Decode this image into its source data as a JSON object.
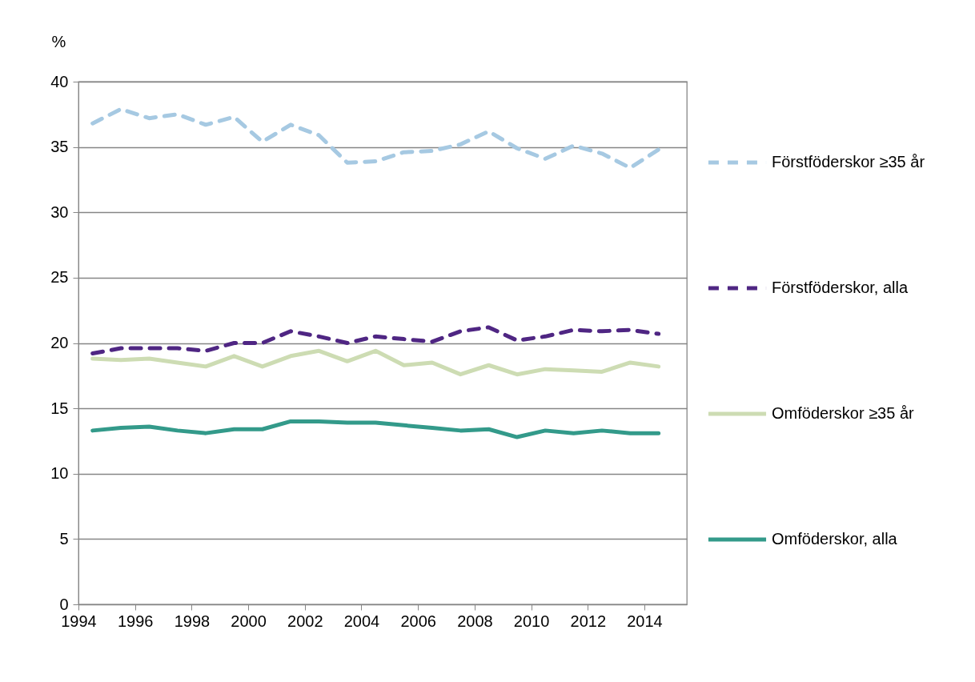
{
  "chart_data": {
    "type": "line",
    "ylabel": "%",
    "x": [
      1994.5,
      1995.5,
      1996.5,
      1997.5,
      1998.5,
      1999.5,
      2000.5,
      2001.5,
      2002.5,
      2003.5,
      2004.5,
      2005.5,
      2006.5,
      2007.5,
      2008.5,
      2009.5,
      2010.5,
      2011.5,
      2012.5,
      2013.5,
      2014.5
    ],
    "series": [
      {
        "name": "Förstföderskor  ≥35 år",
        "color": "#a6c9e2",
        "line_style": "dashed",
        "values": [
          36.8,
          37.9,
          37.2,
          37.5,
          36.7,
          37.3,
          35.4,
          36.7,
          35.9,
          33.8,
          33.9,
          34.6,
          34.7,
          35.2,
          36.2,
          34.9,
          34.1,
          35.1,
          34.5,
          33.4,
          34.8
        ]
      },
      {
        "name": "Förstföderskor, alla",
        "color": "#4f2683",
        "line_style": "dashed",
        "values": [
          19.2,
          19.6,
          19.6,
          19.6,
          19.4,
          20.0,
          20.0,
          20.9,
          20.5,
          20.0,
          20.5,
          20.3,
          20.1,
          20.9,
          21.2,
          20.2,
          20.5,
          21.0,
          20.9,
          21.0,
          20.7
        ]
      },
      {
        "name": "Omföderskor  ≥35 år",
        "color": "#cddcb3",
        "line_style": "solid",
        "values": [
          18.8,
          18.7,
          18.8,
          18.5,
          18.2,
          19.0,
          18.2,
          19.0,
          19.4,
          18.6,
          19.4,
          18.3,
          18.5,
          17.6,
          18.3,
          17.6,
          18.0,
          17.9,
          17.8,
          18.5,
          18.2
        ]
      },
      {
        "name": "Omföderskor, alla",
        "color": "#339a8a",
        "line_style": "solid",
        "values": [
          13.3,
          13.5,
          13.6,
          13.3,
          13.1,
          13.4,
          13.4,
          14.0,
          14.0,
          13.9,
          13.9,
          13.7,
          13.5,
          13.3,
          13.4,
          12.8,
          13.3,
          13.1,
          13.3,
          13.1,
          13.1
        ]
      }
    ],
    "xlim": [
      1994,
      2015.5
    ],
    "xticks": [
      1994,
      1996,
      1998,
      2000,
      2002,
      2004,
      2006,
      2008,
      2010,
      2012,
      2014
    ],
    "ylim": [
      0,
      40
    ],
    "yticks": [
      0,
      5,
      10,
      15,
      20,
      25,
      30,
      35,
      40
    ],
    "grid": "y",
    "legend": "right"
  }
}
